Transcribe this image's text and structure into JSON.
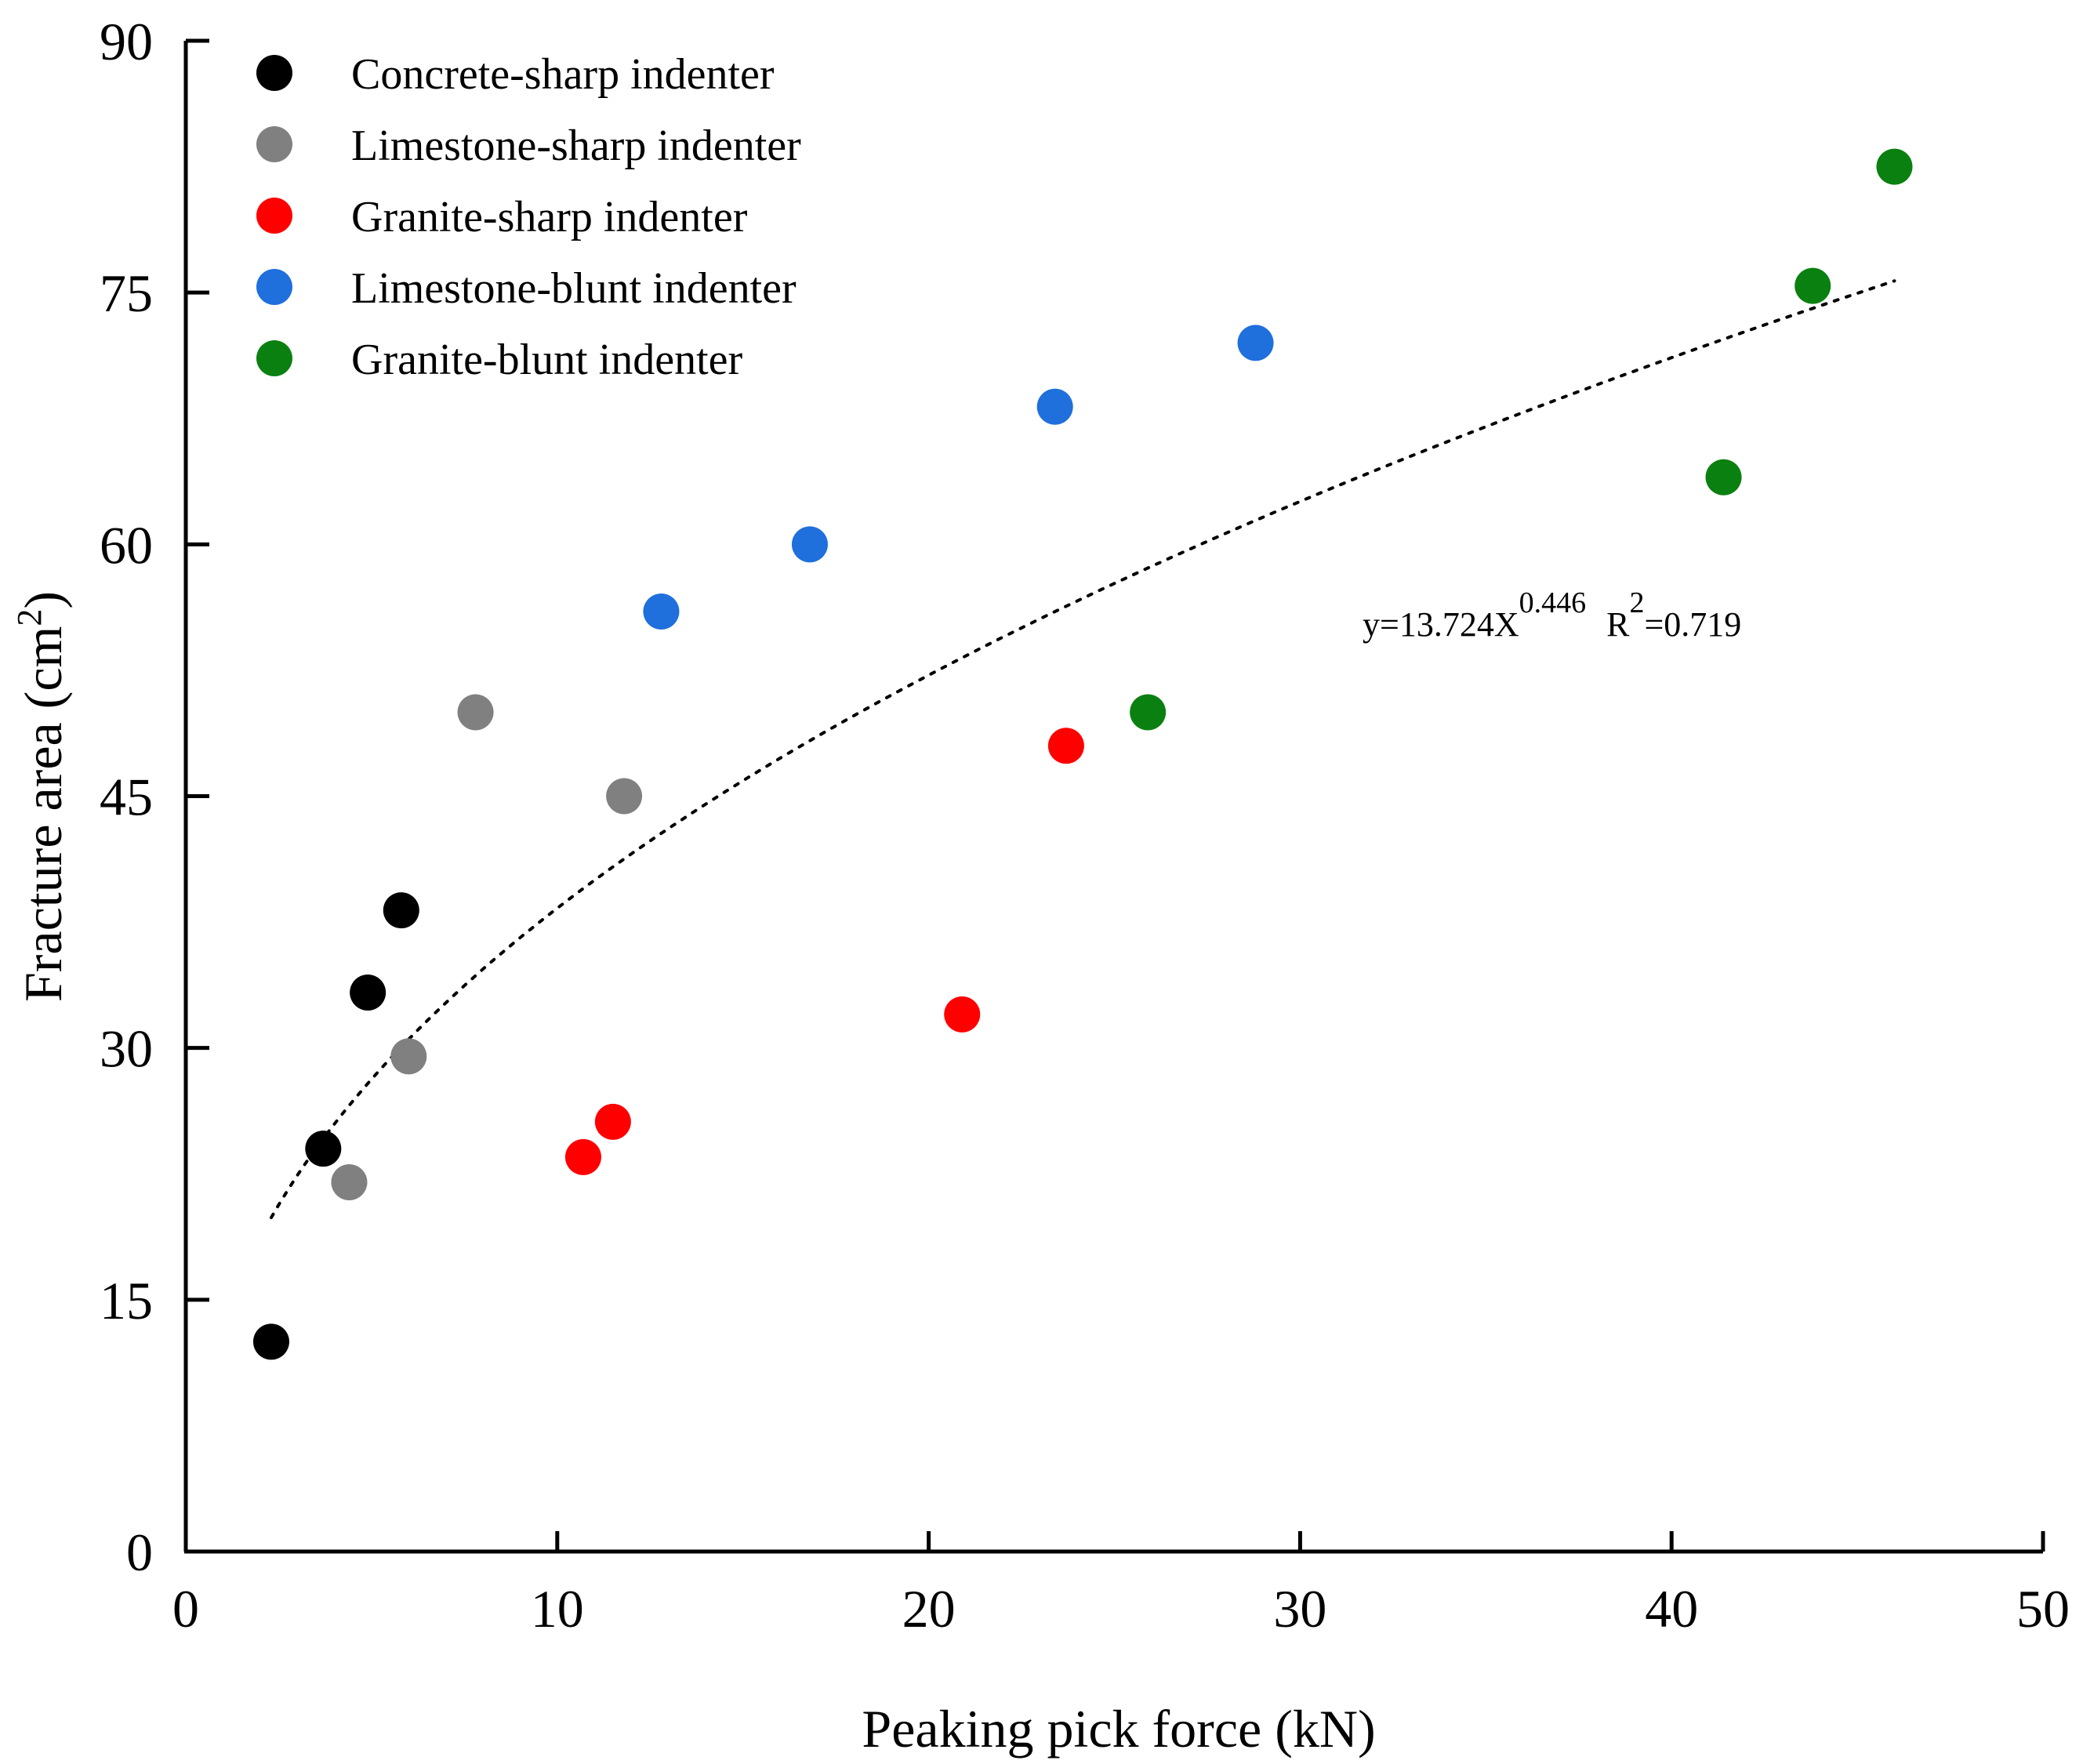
{
  "chart_data": {
    "type": "scatter",
    "title": "",
    "xlabel": "Peaking pick force (kN)",
    "ylabel_main": "Fracture area (cm",
    "ylabel_sup": "2",
    "ylabel_close": ")",
    "xlim": [
      0,
      50
    ],
    "ylim": [
      0,
      90
    ],
    "xticks": [
      0,
      10,
      20,
      30,
      40,
      50
    ],
    "yticks": [
      0,
      15,
      30,
      45,
      60,
      75,
      90
    ],
    "grid": false,
    "legend_position": "top-left",
    "series": [
      {
        "name": "Concrete-sharp indenter",
        "color": "#000000",
        "points": [
          [
            2.3,
            12.5
          ],
          [
            3.7,
            24.0
          ],
          [
            4.9,
            33.3
          ],
          [
            5.8,
            38.2
          ]
        ]
      },
      {
        "name": "Limestone-sharp indenter",
        "color": "#808080",
        "points": [
          [
            4.4,
            22.0
          ],
          [
            6.0,
            29.5
          ],
          [
            7.8,
            50.0
          ],
          [
            11.8,
            45.0
          ]
        ]
      },
      {
        "name": "Granite-sharp indenter",
        "color": "#ff0000",
        "points": [
          [
            10.7,
            23.5
          ],
          [
            11.5,
            25.6
          ],
          [
            20.9,
            32.0
          ],
          [
            23.7,
            48.0
          ]
        ]
      },
      {
        "name": "Limestone-blunt indenter",
        "color": "#1f6fdc",
        "points": [
          [
            12.8,
            56.0
          ],
          [
            16.8,
            60.0
          ],
          [
            23.4,
            68.2
          ],
          [
            28.8,
            72.0
          ]
        ]
      },
      {
        "name": "Granite-blunt indenter",
        "color": "#0a8010",
        "points": [
          [
            25.9,
            50.0
          ],
          [
            41.4,
            64.0
          ],
          [
            43.8,
            75.4
          ],
          [
            46.0,
            82.5
          ]
        ]
      }
    ],
    "fit": {
      "type": "power",
      "a": 13.724,
      "b": 0.446,
      "x_range": [
        2.3,
        46.0
      ],
      "color": "#000000",
      "equation_base": "y=13.724X",
      "equation_exp": "0.446",
      "r2_base": "R",
      "r2_exp": "2",
      "r2_value": "=0.719"
    }
  }
}
